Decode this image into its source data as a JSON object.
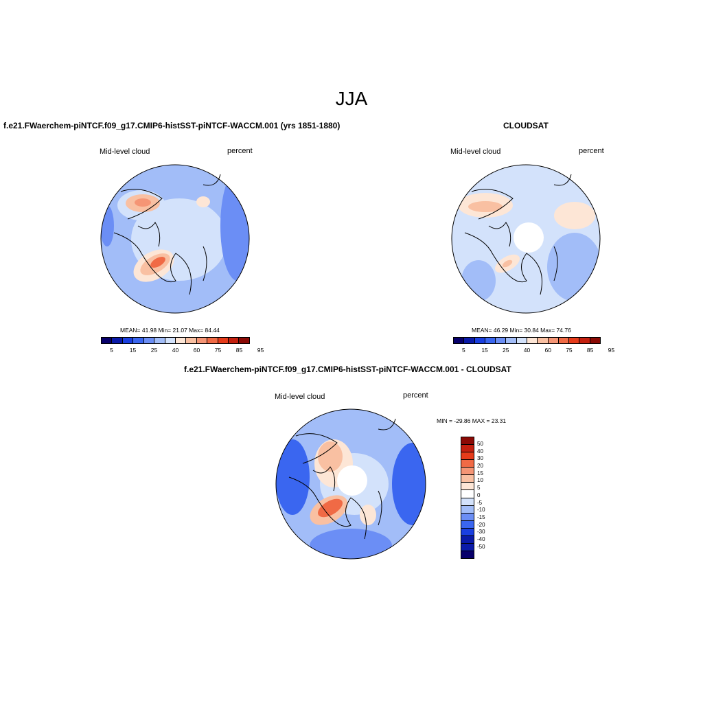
{
  "season": "JJA",
  "panels": {
    "model": {
      "title": "f.e21.FWaerchem-piNTCF.f09_g17.CMIP6-histSST-piNTCF-WACCM.001 (yrs 1851-1880)",
      "variable": "Mid-level cloud",
      "units": "percent",
      "mean_text": "MEAN=  41.98  Min=  21.07  Max=  84.44",
      "stats": {
        "mean": 41.98,
        "min": 21.07,
        "max": 84.44
      }
    },
    "obs": {
      "title": "CLOUDSAT",
      "variable": "Mid-level cloud",
      "units": "percent",
      "mean_text": "MEAN=  46.29  Min=  30.84  Max=  74.76",
      "stats": {
        "mean": 46.29,
        "min": 30.84,
        "max": 74.76
      }
    },
    "diff": {
      "title": "f.e21.FWaerchem-piNTCF.f09_g17.CMIP6-histSST-piNTCF-WACCM.001 - CLOUDSAT",
      "variable": "Mid-level cloud",
      "units": "percent",
      "minmax_text": "MIN = -29.86 MAX =  23.31",
      "stats": {
        "min": -29.86,
        "max": 23.31
      }
    }
  },
  "colorbar_abs": {
    "colors": [
      "#08006b",
      "#0a1aa8",
      "#1a3fe0",
      "#3a66f0",
      "#6b8ef5",
      "#a2bdf8",
      "#d3e2fb",
      "#fde6d6",
      "#f9c0a2",
      "#f59575",
      "#f06a45",
      "#e63b1a",
      "#c4200f",
      "#8b0a05"
    ],
    "tick_labels": [
      "5",
      "15",
      "25",
      "40",
      "60",
      "75",
      "85",
      "95"
    ]
  },
  "colorbar_diff": {
    "colors": [
      "#8b0a05",
      "#c4200f",
      "#e63b1a",
      "#f06a45",
      "#f59575",
      "#f9c0a2",
      "#fde6d6",
      "#ffffff",
      "#d3e2fb",
      "#a2bdf8",
      "#6b8ef5",
      "#3a66f0",
      "#1a3fe0",
      "#0a1aa8",
      "#0a1aa8",
      "#08006b"
    ],
    "tick_labels": [
      "50",
      "40",
      "30",
      "20",
      "15",
      "10",
      "5",
      "0",
      "-5",
      "-10",
      "-15",
      "-20",
      "-30",
      "-40",
      "-50"
    ]
  },
  "colors": {
    "land_outline": "#000000",
    "background": "#ffffff"
  }
}
